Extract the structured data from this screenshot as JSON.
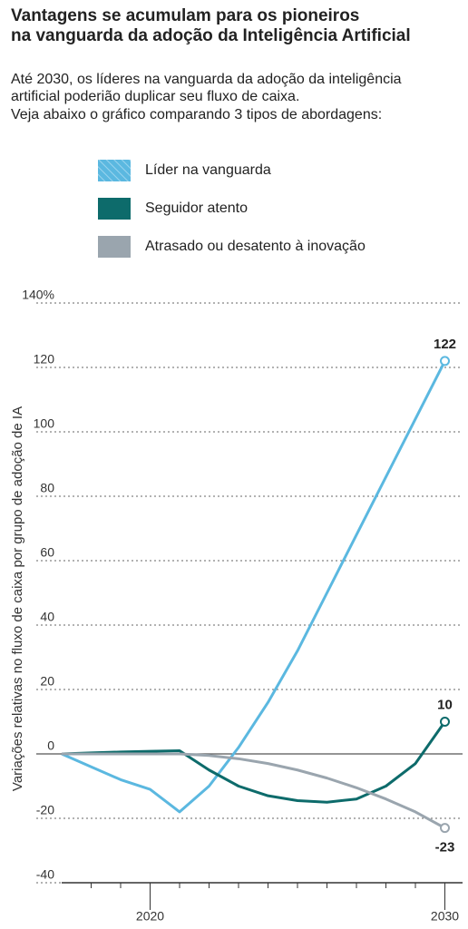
{
  "chart_data": {
    "type": "line",
    "title": [
      "Vantagens se acumulam para os pioneiros",
      "na vanguarda da adoção da Inteligência Artificial"
    ],
    "subtitle": [
      "Até 2030, os líderes na vanguarda da adoção da inteligência",
      "artificial poderião duplicar seu fluxo de caixa.",
      "Veja abaixo o gráfico comparando 3 tipos de abordagens:"
    ],
    "y_label": "Variações relativas no fluxo de caixa por grupo de adoção de IA",
    "x": [
      2017,
      2018,
      2019,
      2020,
      2021,
      2022,
      2023,
      2024,
      2025,
      2026,
      2027,
      2028,
      2029,
      2030
    ],
    "series": [
      {
        "name": "Líder na vanguarda",
        "color": "#5bb8e0",
        "values": [
          0,
          -4,
          -8,
          -11,
          -18,
          -10,
          2,
          16,
          32,
          50,
          68,
          86,
          104,
          122
        ]
      },
      {
        "name": "Seguidor atento",
        "color": "#0d6b6b",
        "values": [
          0,
          0.3,
          0.6,
          0.8,
          1,
          -5,
          -10,
          -13,
          -14.5,
          -15,
          -14,
          -10,
          -3,
          10
        ]
      },
      {
        "name": "Atrasado ou desatento à inovação",
        "color": "#9aa5ae",
        "values": [
          0,
          0,
          0,
          0,
          0,
          -0.5,
          -1.5,
          -3,
          -5,
          -7.5,
          -10.5,
          -14,
          -18,
          -23
        ]
      }
    ],
    "xlim": [
      2017,
      2030.6
    ],
    "xticks": [
      2020,
      2030
    ],
    "xminorticks": [
      2018,
      2019,
      2021,
      2022,
      2023,
      2024,
      2025,
      2026,
      2027,
      2028,
      2029
    ],
    "ylim": [
      -40,
      140
    ],
    "yticks": [
      -40,
      -20,
      0,
      20,
      40,
      60,
      80,
      100,
      120,
      {
        "value": 140,
        "label": "140%"
      }
    ],
    "grid": true
  }
}
